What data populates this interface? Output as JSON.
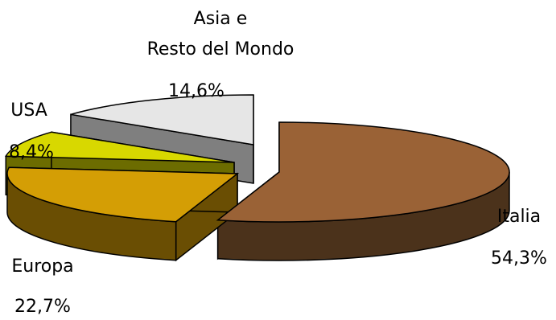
{
  "chart_data": {
    "type": "pie",
    "title": "",
    "slices": [
      {
        "label_lines": [
          "Italia"
        ],
        "value": 54.3,
        "value_label": "54,3%",
        "color": "#9A6236",
        "side_color": "#4B321B"
      },
      {
        "label_lines": [
          "Europa"
        ],
        "value": 22.7,
        "value_label": "22,7%",
        "color": "#D49E05",
        "side_color": "#6A4E03"
      },
      {
        "label_lines": [
          "USA"
        ],
        "value": 8.4,
        "value_label": "8,4%",
        "color": "#D8D800",
        "side_color": "#6C6C00"
      },
      {
        "label_lines": [
          "Asia e",
          "Resto del Mondo"
        ],
        "value": 14.6,
        "value_label": "14,6%",
        "color": "#E6E6E6",
        "side_color": "#7F7F7F"
      }
    ],
    "exploded": true,
    "three_d": true,
    "legend": "none",
    "outline_color": "#000000"
  }
}
